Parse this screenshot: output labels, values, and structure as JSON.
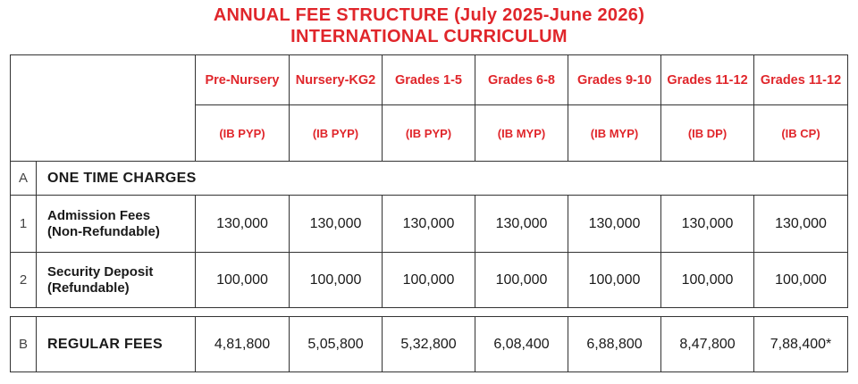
{
  "title_line1": "ANNUAL FEE STRUCTURE (July 2025-June 2026)",
  "title_line2": "INTERNATIONAL CURRICULUM",
  "grades": [
    {
      "grade": "Pre-Nursery",
      "curriculum": "(IB PYP)"
    },
    {
      "grade": "Nursery-KG2",
      "curriculum": "(IB PYP)"
    },
    {
      "grade": "Grades 1-5",
      "curriculum": "(IB PYP)"
    },
    {
      "grade": "Grades 6-8",
      "curriculum": "(IB MYP)"
    },
    {
      "grade": "Grades 9-10",
      "curriculum": "(IB MYP)"
    },
    {
      "grade": "Grades 11-12",
      "curriculum": "(IB DP)"
    },
    {
      "grade": "Grades 11-12",
      "curriculum": "(IB CP)"
    }
  ],
  "section_a": {
    "index": "A",
    "label": "ONE TIME CHARGES"
  },
  "rows": [
    {
      "index": "1",
      "label_line1": "Admission Fees",
      "label_line2": "(Non-Refundable)",
      "values": [
        "130,000",
        "130,000",
        "130,000",
        "130,000",
        "130,000",
        "130,000",
        "130,000"
      ]
    },
    {
      "index": "2",
      "label_line1": "Security Deposit",
      "label_line2": "(Refundable)",
      "values": [
        "100,000",
        "100,000",
        "100,000",
        "100,000",
        "100,000",
        "100,000",
        "100,000"
      ]
    }
  ],
  "section_b": {
    "index": "B",
    "label": "REGULAR FEES",
    "values": [
      "4,81,800",
      "5,05,800",
      "5,32,800",
      "6,08,400",
      "6,88,800",
      "8,47,800",
      "7,88,400*"
    ]
  },
  "colors": {
    "accent": "#e0262b",
    "border": "#333333"
  }
}
